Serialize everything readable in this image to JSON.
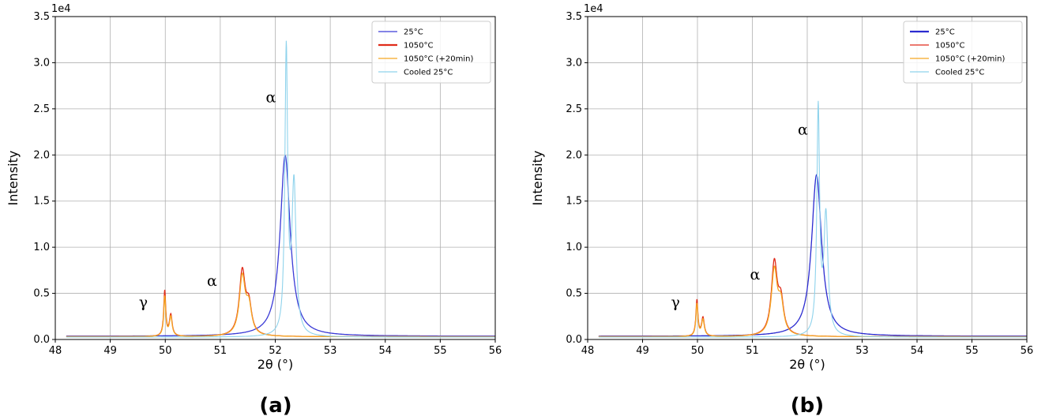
{
  "chart_data": [
    {
      "type": "line",
      "panel_label": "(a)",
      "xlabel": "2θ (°)",
      "ylabel": "Intensity",
      "y_exponent_label": "1e4",
      "xlim": [
        48,
        56
      ],
      "ylim": [
        0,
        35000
      ],
      "x_ticks": [
        "48",
        "49",
        "50",
        "51",
        "52",
        "53",
        "54",
        "55",
        "56"
      ],
      "y_ticks": [
        "0.0",
        "0.5",
        "1.0",
        "1.5",
        "2.0",
        "2.5",
        "3.0",
        "3.5"
      ],
      "grid": true,
      "legend_position": "top-right",
      "series": [
        {
          "name": "25°C",
          "color": "#3b3bd6",
          "background": 350,
          "peaks": [
            [
              52.18,
              19600,
              0.11
            ]
          ]
        },
        {
          "name": "1050°C",
          "color": "#e02b1a",
          "background": 300,
          "peaks": [
            [
              49.99,
              4900,
              0.022
            ],
            [
              50.1,
              2300,
              0.03
            ],
            [
              51.4,
              6900,
              0.065
            ],
            [
              51.52,
              3000,
              0.06
            ]
          ]
        },
        {
          "name": "1050°C (+20min)",
          "color": "#f5a623",
          "background": 300,
          "peaks": [
            [
              49.99,
              4300,
              0.022
            ],
            [
              50.1,
              2100,
              0.03
            ],
            [
              51.4,
              6300,
              0.065
            ],
            [
              51.52,
              2900,
              0.06
            ]
          ]
        },
        {
          "name": "Cooled 25°C",
          "color": "#8fd3ec",
          "background": 250,
          "peaks": [
            [
              52.2,
              30600,
              0.03
            ],
            [
              52.34,
              16300,
              0.045
            ]
          ]
        }
      ],
      "annotations": [
        {
          "text": "γ",
          "x": 49.6,
          "y": 3500
        },
        {
          "text": "α",
          "x": 50.85,
          "y": 5800
        },
        {
          "text": "α",
          "x": 51.92,
          "y": 25700
        }
      ]
    },
    {
      "type": "line",
      "panel_label": "(b)",
      "xlabel": "2θ (°)",
      "ylabel": "Intensity",
      "y_exponent_label": "1e4",
      "xlim": [
        48,
        56
      ],
      "ylim": [
        0,
        35000
      ],
      "x_ticks": [
        "48",
        "49",
        "50",
        "51",
        "52",
        "53",
        "54",
        "55",
        "56"
      ],
      "y_ticks": [
        "0.0",
        "0.5",
        "1.0",
        "1.5",
        "2.0",
        "2.5",
        "3.0",
        "3.5"
      ],
      "grid": true,
      "legend_position": "top-right",
      "series": [
        {
          "name": "25°C",
          "color": "#2b2bd0",
          "background": 350,
          "peaks": [
            [
              52.17,
              17500,
              0.11
            ]
          ]
        },
        {
          "name": "1050°C",
          "color": "#e02b1a",
          "background": 300,
          "peaks": [
            [
              49.99,
              3900,
              0.022
            ],
            [
              50.1,
              2000,
              0.03
            ],
            [
              51.4,
              7800,
              0.065
            ],
            [
              51.52,
              3400,
              0.06
            ]
          ]
        },
        {
          "name": "1050°C (+20min)",
          "color": "#f5a623",
          "background": 300,
          "peaks": [
            [
              49.99,
              3500,
              0.022
            ],
            [
              50.1,
              1800,
              0.03
            ],
            [
              51.4,
              7000,
              0.065
            ],
            [
              51.52,
              3200,
              0.06
            ]
          ]
        },
        {
          "name": "Cooled 25°C",
          "color": "#8fd3ec",
          "background": 250,
          "peaks": [
            [
              52.2,
              24400,
              0.03
            ],
            [
              52.34,
              12900,
              0.045
            ]
          ]
        }
      ],
      "annotations": [
        {
          "text": "γ",
          "x": 49.6,
          "y": 3500
        },
        {
          "text": "α",
          "x": 51.05,
          "y": 6500
        },
        {
          "text": "α",
          "x": 51.92,
          "y": 22200
        }
      ]
    }
  ]
}
